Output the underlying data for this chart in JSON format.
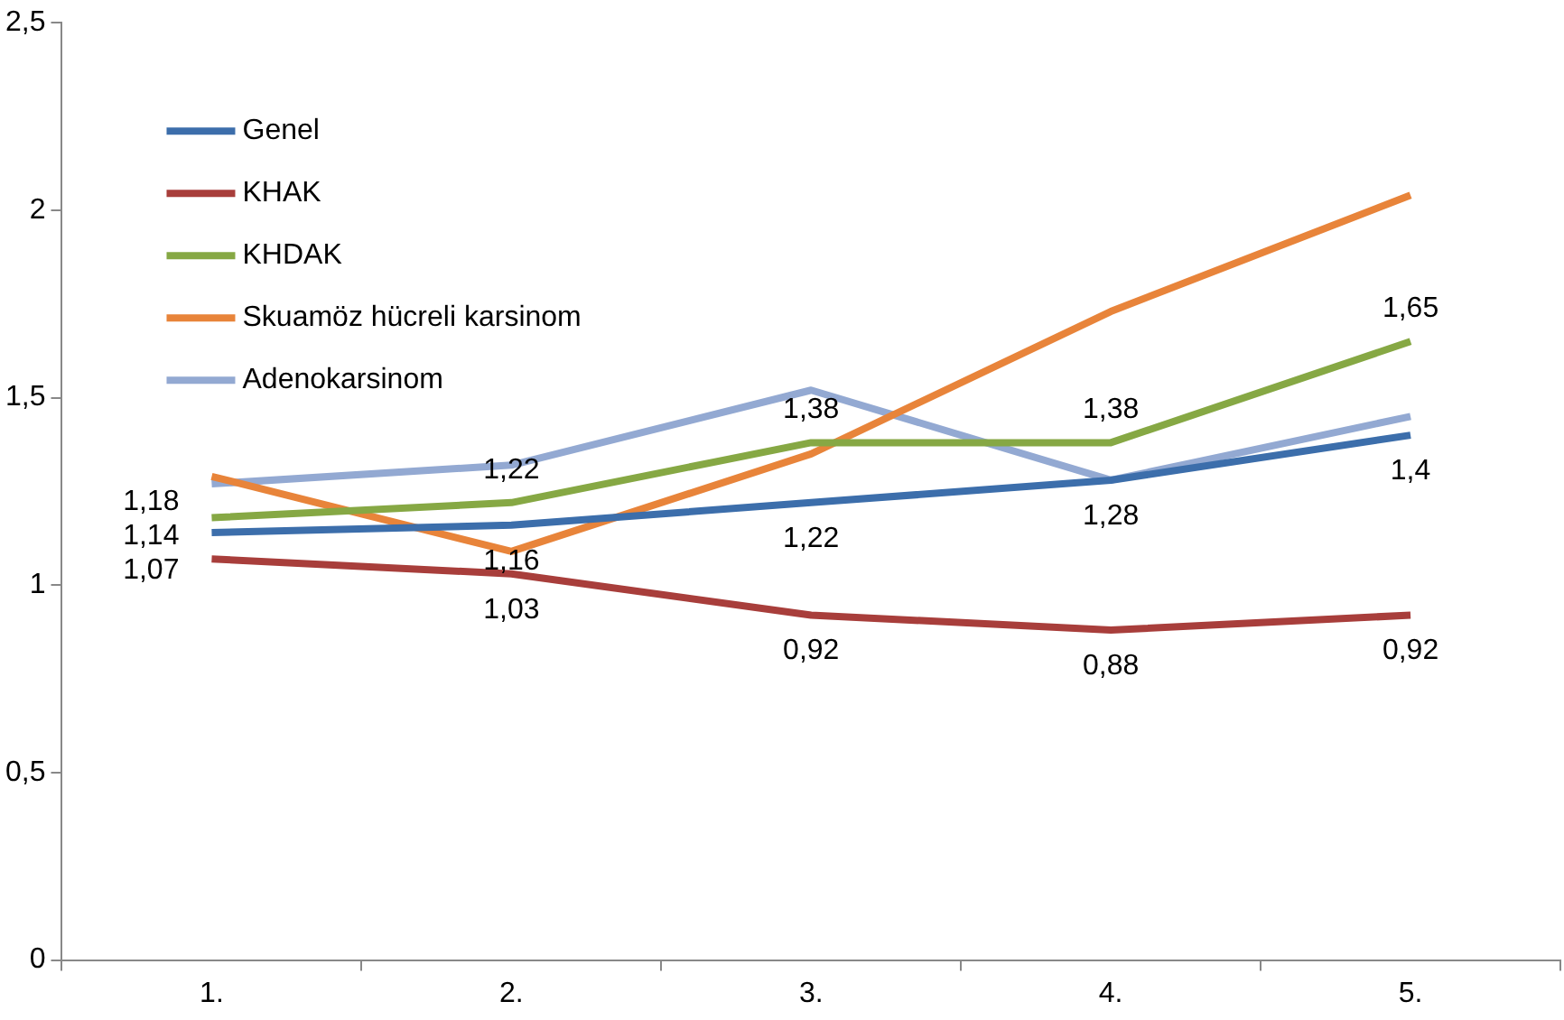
{
  "chart_data": {
    "type": "line",
    "categories": [
      "1.",
      "2.",
      "3.",
      "4.",
      "5."
    ],
    "ylim": [
      0,
      2.5
    ],
    "yticks": [
      {
        "value": 0,
        "label": "0"
      },
      {
        "value": 0.5,
        "label": "0,5"
      },
      {
        "value": 1,
        "label": "1"
      },
      {
        "value": 1.5,
        "label": "1,5"
      },
      {
        "value": 2,
        "label": "2"
      },
      {
        "value": 2.5,
        "label": "2,5"
      }
    ],
    "grid": false,
    "legend": "top left",
    "marker": "none",
    "line_style": "solid",
    "series": [
      {
        "name": "Genel",
        "color": "#3c6eab",
        "values": [
          1.14,
          1.16,
          1.22,
          1.28,
          1.4
        ],
        "value_labels": [
          "1,14",
          "1,16",
          "1,22",
          "1,28",
          "1,4"
        ]
      },
      {
        "name": "KHAK",
        "color": "#a83e3b",
        "values": [
          1.07,
          1.03,
          0.92,
          0.88,
          0.92
        ],
        "value_labels": [
          "1,07",
          "1,03",
          "0,92",
          "0,88",
          "0,92"
        ]
      },
      {
        "name": "KHDAK",
        "color": "#86a844",
        "values": [
          1.18,
          1.22,
          1.38,
          1.38,
          1.65
        ],
        "value_labels": [
          "1,18",
          "1,22",
          "1,38",
          "1,38",
          "1,65"
        ]
      },
      {
        "name": "Skuamöz hücreli karsinom",
        "color": "#e8843a",
        "values": [
          1.29,
          1.09,
          1.35,
          1.73,
          2.04
        ]
      },
      {
        "name": "Adenokarsinom",
        "color": "#93a9d2",
        "values": [
          1.27,
          1.32,
          1.52,
          1.28,
          1.45
        ]
      }
    ]
  }
}
